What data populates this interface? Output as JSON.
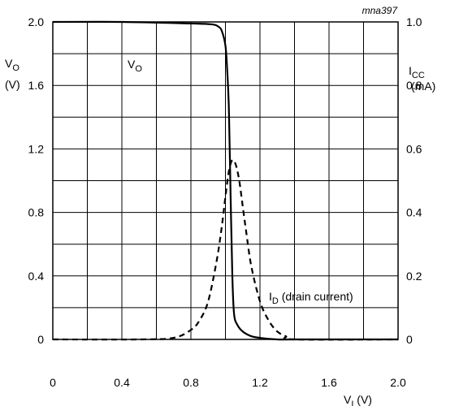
{
  "chart_data": {
    "type": "line",
    "tag": "mna397",
    "x_axis": {
      "label_main": "V",
      "label_sub": "I",
      "label_unit": " (V)",
      "range": [
        0,
        2.0
      ],
      "ticks": [
        "0",
        "0.4",
        "0.8",
        "1.2",
        "1.6",
        "2.0"
      ],
      "tick_values": [
        0,
        0.4,
        0.8,
        1.2,
        1.6,
        2.0
      ]
    },
    "y_left": {
      "label_main": "V",
      "label_sub": "O",
      "label_unit": "(V)",
      "range": [
        0,
        2.0
      ],
      "ticks": [
        "0",
        "0.4",
        "0.8",
        "1.2",
        "1.6",
        "2.0"
      ],
      "tick_values": [
        0,
        0.4,
        0.8,
        1.2,
        1.6,
        2.0
      ]
    },
    "y_right": {
      "label_main": "I",
      "label_sub": "CC",
      "label_unit": "(mA)",
      "range": [
        0,
        1.0
      ],
      "ticks": [
        "0",
        "0.2",
        "0.4",
        "0.6",
        "0.8",
        "1.0"
      ],
      "tick_values": [
        0,
        0.2,
        0.4,
        0.6,
        0.8,
        1.0
      ]
    },
    "grid": true,
    "series": [
      {
        "name_main": "V",
        "name_sub": "O",
        "name_rest": "",
        "axis": "left",
        "style": "solid",
        "x": [
          0,
          0.4,
          0.8,
          0.92,
          0.96,
          0.98,
          1.0,
          1.01,
          1.02,
          1.03,
          1.04,
          1.05,
          1.07,
          1.1,
          1.15,
          1.2,
          1.3,
          1.4,
          2.0
        ],
        "y": [
          2.0,
          2.0,
          1.99,
          1.985,
          1.97,
          1.94,
          1.85,
          1.7,
          1.45,
          0.9,
          0.4,
          0.16,
          0.09,
          0.05,
          0.02,
          0.01,
          0,
          0,
          0
        ]
      },
      {
        "name_main": "I",
        "name_sub": "D",
        "name_rest": " (drain current)",
        "axis": "right",
        "style": "dashed",
        "x": [
          0,
          0.5,
          0.7,
          0.8,
          0.85,
          0.9,
          0.95,
          0.98,
          1.0,
          1.02,
          1.04,
          1.06,
          1.08,
          1.1,
          1.12,
          1.15,
          1.2,
          1.25,
          1.3,
          1.35,
          1.4,
          2.0
        ],
        "y": [
          0,
          0,
          0.005,
          0.03,
          0.06,
          0.12,
          0.25,
          0.36,
          0.45,
          0.53,
          0.565,
          0.55,
          0.5,
          0.42,
          0.34,
          0.23,
          0.12,
          0.06,
          0.025,
          0.01,
          0,
          0
        ]
      }
    ]
  }
}
